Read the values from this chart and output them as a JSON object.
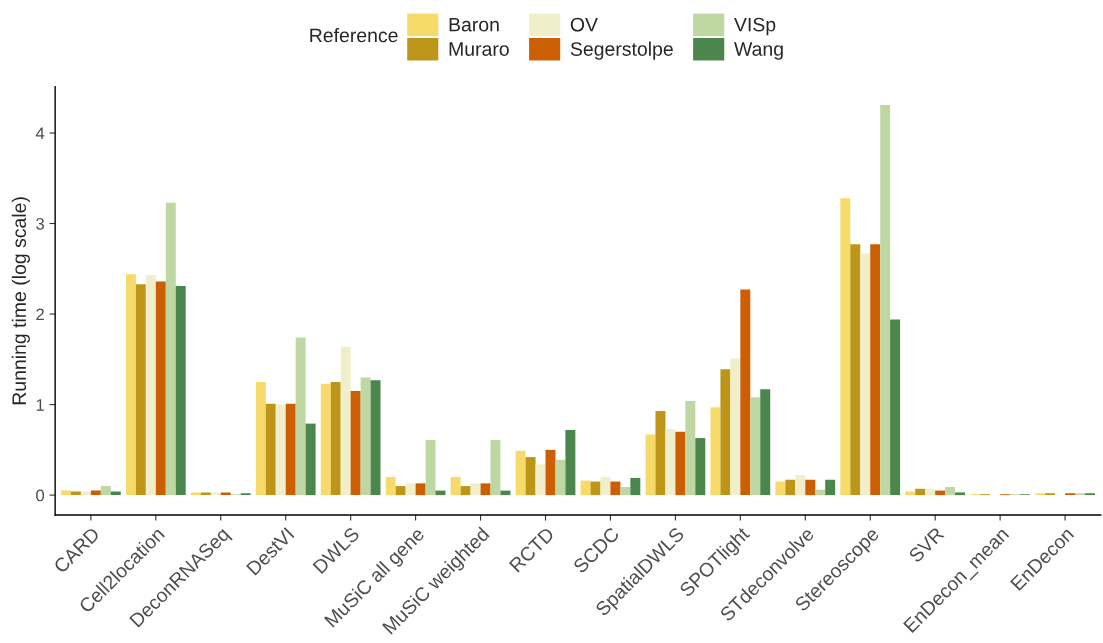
{
  "chart_data": {
    "type": "bar",
    "ylabel": "Running time (log scale)",
    "legend_title": "Reference",
    "legend": "top",
    "grid": false,
    "categories": [
      "CARD",
      "Cell2location",
      "DeconRNASeq",
      "DestVI",
      "DWLS",
      "MuSiC all gene",
      "MuSiC weighted",
      "RCTD",
      "SCDC",
      "SpatialDWLS",
      "SPOTlight",
      "STdeconvolve",
      "Stereoscope",
      "SVR",
      "EnDecon_mean",
      "EnDecon"
    ],
    "ylim": [
      -0.22,
      4.51
    ],
    "yticks": [
      0,
      1,
      2,
      3,
      4
    ],
    "series": [
      {
        "name": "Baron",
        "color": "#f6db6b",
        "values": [
          0.05,
          2.44,
          0.03,
          1.25,
          1.23,
          0.2,
          0.2,
          0.49,
          0.16,
          0.67,
          0.97,
          0.15,
          3.28,
          0.04,
          0.01,
          0.02
        ]
      },
      {
        "name": "Muraro",
        "color": "#bd9619",
        "values": [
          0.04,
          2.33,
          0.03,
          1.01,
          1.25,
          0.1,
          0.1,
          0.42,
          0.15,
          0.93,
          1.39,
          0.17,
          2.77,
          0.07,
          0.01,
          0.02
        ]
      },
      {
        "name": "OV",
        "color": "#f1eecb",
        "values": [
          0.04,
          2.43,
          0.03,
          1.0,
          1.64,
          0.13,
          0.13,
          0.34,
          0.2,
          0.73,
          1.51,
          0.22,
          2.67,
          0.07,
          null,
          null
        ]
      },
      {
        "name": "Segerstolpe",
        "color": "#cc5f04",
        "values": [
          0.05,
          2.36,
          0.03,
          1.01,
          1.15,
          0.13,
          0.13,
          0.5,
          0.15,
          0.7,
          2.27,
          0.17,
          2.77,
          0.05,
          0.01,
          0.02
        ]
      },
      {
        "name": "VISp",
        "color": "#bfd8a3",
        "values": [
          0.1,
          3.23,
          0.01,
          1.74,
          1.3,
          0.61,
          0.61,
          0.39,
          0.09,
          1.04,
          1.08,
          0.06,
          4.31,
          0.09,
          0.01,
          0.02
        ]
      },
      {
        "name": "Wang",
        "color": "#4b864d",
        "values": [
          0.04,
          2.31,
          0.02,
          0.79,
          1.27,
          0.05,
          0.05,
          0.72,
          0.19,
          0.63,
          1.17,
          0.17,
          1.94,
          0.03,
          0.01,
          0.02
        ]
      }
    ]
  }
}
